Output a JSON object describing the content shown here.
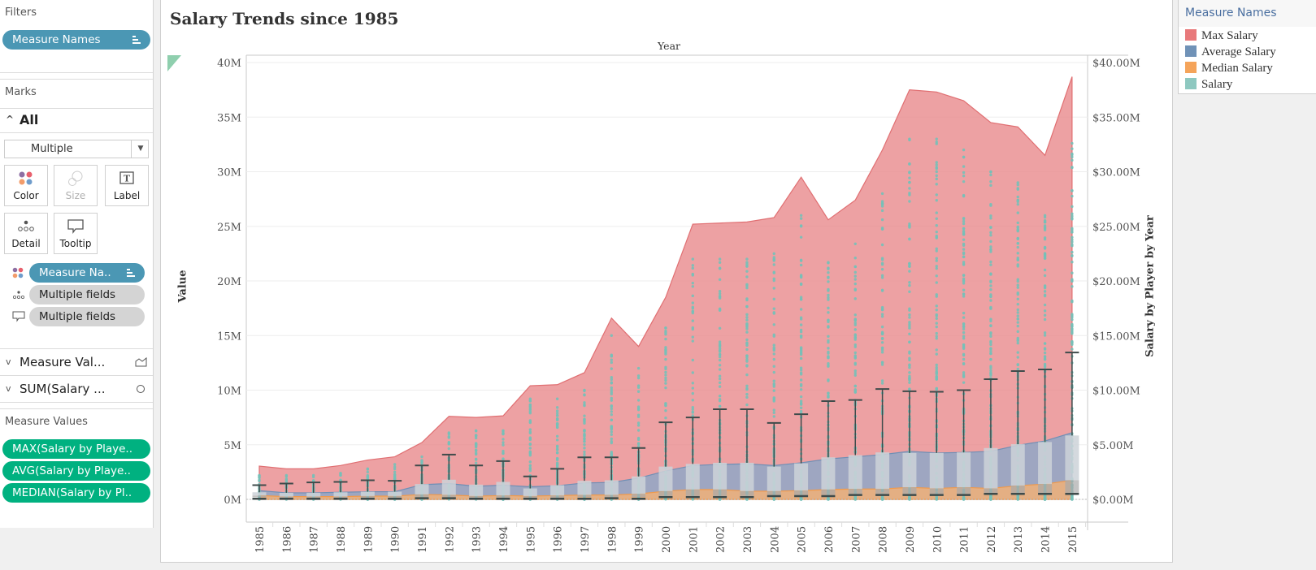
{
  "left_panel": {
    "filters_label": "Filters",
    "filter_pills": [
      {
        "label": "Measure Names"
      }
    ],
    "marks_label": "Marks",
    "marks_all_label": "All",
    "mark_type_value": "Multiple",
    "mark_buttons": [
      {
        "label": "Color",
        "icon": "color-dots-icon",
        "enabled": true
      },
      {
        "label": "Size",
        "icon": "size-circles-icon",
        "enabled": false
      },
      {
        "label": "Label",
        "icon": "text-label-icon",
        "enabled": true
      },
      {
        "label": "Detail",
        "icon": "detail-dots-icon",
        "enabled": true
      },
      {
        "label": "Tooltip",
        "icon": "tooltip-bubble-icon",
        "enabled": true
      }
    ],
    "mark_pills": [
      {
        "label": "Measure Na..",
        "icon": "color-dots-icon"
      },
      {
        "label": "Multiple fields",
        "icon": "detail-dots-icon"
      },
      {
        "label": "Multiple fields",
        "icon": "tooltip-bubble-icon"
      }
    ],
    "mark_layers": [
      {
        "label": "Measure Val...",
        "icon": "area-mark-icon"
      },
      {
        "label": "SUM(Salary ...",
        "icon": "circle-mark-icon"
      }
    ],
    "measure_values_label": "Measure Values",
    "measure_value_pills": [
      {
        "label": "MAX(Salary by Playe.."
      },
      {
        "label": "AVG(Salary by Playe.."
      },
      {
        "label": "MEDIAN(Salary by Pl.."
      }
    ]
  },
  "legend": {
    "title": "Measure Names",
    "items": [
      {
        "label": "Max Salary",
        "color": "#e8797b"
      },
      {
        "label": "Average Salary",
        "color": "#7092b7"
      },
      {
        "label": "Median Salary",
        "color": "#f5a45a"
      },
      {
        "label": "Salary",
        "color": "#8ec8c0"
      }
    ]
  },
  "chart_data": {
    "type": "area",
    "title": "Salary Trends since 1985",
    "column_header": "Year",
    "ylabel": "Value",
    "ylabel_right": "Salary by Player by Year",
    "ylim": [
      0,
      40
    ],
    "y_ticks": [
      "0M",
      "5M",
      "10M",
      "15M",
      "20M",
      "25M",
      "30M",
      "35M",
      "40M"
    ],
    "y_ticks_right": [
      "$0.00M",
      "$5.00M",
      "$10.00M",
      "$15.00M",
      "$20.00M",
      "$25.00M",
      "$30.00M",
      "$35.00M",
      "$40.00M"
    ],
    "grid": true,
    "legend_position": "right",
    "units": "millions",
    "categories": [
      "1985",
      "1986",
      "1987",
      "1988",
      "1989",
      "1990",
      "1991",
      "1992",
      "1993",
      "1994",
      "1995",
      "1996",
      "1997",
      "1998",
      "1999",
      "2000",
      "2001",
      "2002",
      "2003",
      "2004",
      "2005",
      "2006",
      "2007",
      "2008",
      "2009",
      "2010",
      "2011",
      "2012",
      "2013",
      "2014",
      "2015"
    ],
    "series": [
      {
        "name": "Max Salary",
        "color": "#e8797b",
        "values": [
          3.05,
          2.8,
          2.8,
          3.1,
          3.6,
          3.9,
          5.2,
          7.6,
          7.5,
          7.65,
          10.4,
          10.5,
          11.6,
          16.6,
          14.0,
          18.5,
          25.2,
          25.3,
          25.4,
          25.8,
          29.5,
          25.6,
          27.4,
          32.0,
          37.5,
          37.3,
          36.5,
          34.5,
          34.1,
          31.5,
          38.7
        ]
      },
      {
        "name": "Average Salary",
        "color": "#7092b7",
        "values": [
          0.8,
          0.6,
          0.6,
          0.65,
          0.7,
          0.7,
          1.35,
          1.45,
          1.2,
          1.3,
          1.15,
          1.25,
          1.5,
          1.55,
          1.95,
          2.6,
          3.1,
          3.2,
          3.25,
          3.1,
          3.35,
          3.7,
          3.9,
          4.1,
          4.4,
          4.25,
          4.3,
          4.4,
          4.95,
          5.35,
          6.1
        ]
      },
      {
        "name": "Median Salary",
        "color": "#f5a45a",
        "values": [
          0.35,
          0.25,
          0.25,
          0.25,
          0.3,
          0.3,
          0.45,
          0.4,
          0.3,
          0.35,
          0.3,
          0.35,
          0.4,
          0.4,
          0.5,
          0.75,
          0.9,
          0.9,
          0.75,
          0.75,
          0.8,
          0.9,
          0.95,
          0.95,
          1.1,
          1.0,
          1.1,
          1.0,
          1.25,
          1.4,
          1.75
        ]
      }
    ],
    "salary_boxplot": {
      "name": "Salary",
      "color": "#8ec8c0",
      "q1": [
        0.2,
        0.15,
        0.15,
        0.15,
        0.15,
        0.15,
        0.2,
        0.2,
        0.15,
        0.15,
        0.15,
        0.15,
        0.2,
        0.2,
        0.2,
        0.3,
        0.3,
        0.3,
        0.3,
        0.35,
        0.35,
        0.4,
        0.4,
        0.4,
        0.45,
        0.45,
        0.45,
        0.5,
        0.5,
        0.5,
        0.55
      ],
      "median": [
        0.35,
        0.25,
        0.25,
        0.25,
        0.3,
        0.3,
        0.45,
        0.4,
        0.3,
        0.35,
        0.3,
        0.35,
        0.4,
        0.4,
        0.5,
        0.75,
        0.9,
        0.9,
        0.75,
        0.75,
        0.8,
        0.9,
        0.95,
        0.95,
        1.1,
        1.0,
        1.1,
        1.0,
        1.25,
        1.4,
        1.75
      ],
      "q3": [
        0.65,
        0.6,
        0.6,
        0.65,
        0.7,
        0.7,
        1.4,
        1.8,
        1.35,
        1.6,
        1.0,
        1.3,
        1.7,
        1.75,
        2.1,
        3.0,
        3.25,
        3.35,
        3.35,
        3.0,
        3.3,
        3.85,
        4.05,
        4.3,
        4.25,
        4.25,
        4.3,
        4.7,
        5.05,
        5.25,
        5.85
      ],
      "whisker_low": [
        0.06,
        0.06,
        0.06,
        0.06,
        0.06,
        0.06,
        0.1,
        0.1,
        0.06,
        0.06,
        0.06,
        0.06,
        0.06,
        0.1,
        0.06,
        0.2,
        0.2,
        0.2,
        0.2,
        0.3,
        0.3,
        0.3,
        0.4,
        0.4,
        0.4,
        0.4,
        0.4,
        0.5,
        0.5,
        0.5,
        0.5
      ],
      "whisker_high": [
        1.3,
        1.45,
        1.55,
        1.6,
        1.75,
        1.7,
        3.1,
        4.1,
        3.1,
        3.5,
        2.1,
        2.8,
        3.85,
        3.85,
        4.7,
        7.05,
        7.5,
        8.25,
        8.25,
        7.0,
        7.8,
        9.0,
        9.1,
        10.1,
        9.9,
        9.85,
        10.0,
        11.0,
        11.75,
        11.9,
        13.45
      ],
      "max_point": [
        2.2,
        2.2,
        2.2,
        2.4,
        2.8,
        3.2,
        3.9,
        6.1,
        6.3,
        6.3,
        9.2,
        9.2,
        10.0,
        15.0,
        12.0,
        15.7,
        22,
        22,
        22,
        22.5,
        26,
        21.7,
        23.4,
        28,
        33,
        33,
        32,
        30,
        29,
        26,
        32.6
      ]
    }
  }
}
